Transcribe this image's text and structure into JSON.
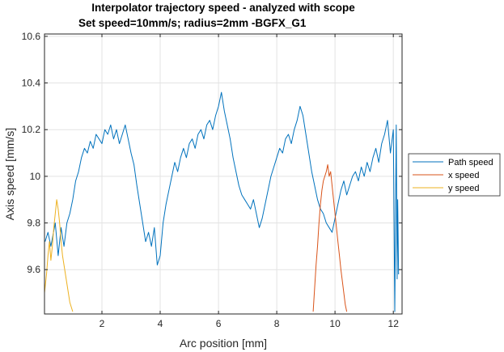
{
  "chart_data": {
    "type": "line",
    "title": [
      "Interpolator trajectory speed - analyzed with scope",
      "Set speed=10mm/s; radius=2mm -BGFX_G1"
    ],
    "xlabel": "Arc position [mm]",
    "ylabel": "Axis speed [mm/s]",
    "xlim": [
      0.03,
      12.3
    ],
    "ylim": [
      9.41,
      10.61
    ],
    "xticks": [
      2,
      4,
      6,
      8,
      10,
      12
    ],
    "yticks": [
      9.6,
      9.8,
      10,
      10.2,
      10.4,
      10.6
    ],
    "xtick_labels": [
      "2",
      "4",
      "6",
      "8",
      "10",
      "12"
    ],
    "ytick_labels": [
      "9.6",
      "9.8",
      "10",
      "10.2",
      "10.4",
      "10.6"
    ],
    "grid": true,
    "legend": {
      "placement": "outside-right",
      "entries": [
        "Path speed",
        "x speed",
        "y speed"
      ]
    },
    "series": [
      {
        "name": "Path speed",
        "color": "#0072bd",
        "x": [
          0.05,
          0.15,
          0.25,
          0.4,
          0.5,
          0.6,
          0.7,
          0.8,
          0.9,
          1.0,
          1.1,
          1.2,
          1.3,
          1.4,
          1.5,
          1.6,
          1.7,
          1.8,
          1.9,
          2.0,
          2.1,
          2.2,
          2.3,
          2.4,
          2.5,
          2.6,
          2.7,
          2.8,
          2.9,
          3.0,
          3.1,
          3.2,
          3.3,
          3.4,
          3.5,
          3.6,
          3.7,
          3.8,
          3.9,
          4.0,
          4.1,
          4.2,
          4.3,
          4.4,
          4.5,
          4.6,
          4.7,
          4.8,
          4.9,
          5.0,
          5.1,
          5.2,
          5.3,
          5.4,
          5.5,
          5.6,
          5.7,
          5.8,
          5.9,
          6.0,
          6.1,
          6.2,
          6.3,
          6.4,
          6.5,
          6.6,
          6.7,
          6.8,
          6.9,
          7.0,
          7.1,
          7.2,
          7.3,
          7.4,
          7.5,
          7.6,
          7.7,
          7.8,
          7.9,
          8.0,
          8.1,
          8.2,
          8.3,
          8.4,
          8.5,
          8.6,
          8.7,
          8.8,
          8.9,
          9.0,
          9.1,
          9.2,
          9.3,
          9.4,
          9.5,
          9.6,
          9.7,
          9.8,
          9.9,
          10.0,
          10.1,
          10.2,
          10.3,
          10.4,
          10.5,
          10.6,
          10.7,
          10.8,
          10.9,
          11.0,
          11.1,
          11.2,
          11.3,
          11.4,
          11.5,
          11.6,
          11.7,
          11.8,
          11.9,
          12.0,
          12.05,
          12.1,
          12.13,
          12.15,
          12.18
        ],
        "values": [
          9.72,
          9.76,
          9.7,
          9.8,
          9.66,
          9.78,
          9.7,
          9.8,
          9.84,
          9.9,
          9.98,
          10.02,
          10.08,
          10.12,
          10.1,
          10.15,
          10.12,
          10.18,
          10.16,
          10.14,
          10.2,
          10.18,
          10.22,
          10.16,
          10.2,
          10.14,
          10.18,
          10.22,
          10.16,
          10.1,
          10.05,
          9.96,
          9.88,
          9.8,
          9.72,
          9.76,
          9.7,
          9.78,
          9.62,
          9.66,
          9.8,
          9.88,
          9.94,
          10.0,
          10.06,
          10.02,
          10.08,
          10.12,
          10.08,
          10.14,
          10.16,
          10.12,
          10.18,
          10.2,
          10.16,
          10.22,
          10.24,
          10.2,
          10.26,
          10.3,
          10.36,
          10.28,
          10.22,
          10.16,
          10.08,
          10.02,
          9.96,
          9.92,
          9.9,
          9.88,
          9.86,
          9.9,
          9.84,
          9.78,
          9.82,
          9.88,
          9.94,
          10.0,
          10.04,
          10.08,
          10.12,
          10.1,
          10.16,
          10.18,
          10.14,
          10.2,
          10.24,
          10.3,
          10.26,
          10.18,
          10.1,
          10.02,
          9.96,
          9.9,
          9.86,
          9.84,
          9.8,
          9.78,
          9.76,
          9.82,
          9.88,
          9.94,
          9.98,
          9.92,
          9.96,
          10.0,
          10.02,
          9.98,
          10.04,
          10.0,
          10.06,
          10.02,
          10.08,
          10.12,
          10.06,
          10.14,
          10.18,
          10.24,
          10.1,
          10.2,
          9.42,
          10.22,
          9.56,
          9.9,
          9.58
        ]
      },
      {
        "name": "x speed",
        "color": "#d95319",
        "x": [
          9.25,
          9.3,
          9.35,
          9.4,
          9.45,
          9.5,
          9.55,
          9.6,
          9.65,
          9.7,
          9.75,
          9.8,
          9.85,
          9.9,
          9.95,
          10.0,
          10.05,
          10.1,
          10.15,
          10.2,
          10.25,
          10.3,
          10.35,
          10.4
        ],
        "values": [
          9.42,
          9.52,
          9.62,
          9.7,
          9.8,
          9.88,
          9.94,
          9.98,
          10.0,
          10.02,
          10.05,
          10.0,
          10.02,
          9.96,
          9.9,
          9.84,
          9.78,
          9.72,
          9.66,
          9.6,
          9.55,
          9.5,
          9.45,
          9.42
        ]
      },
      {
        "name": "y speed",
        "color": "#edb120",
        "x": [
          0.03,
          0.1,
          0.15,
          0.2,
          0.25,
          0.3,
          0.35,
          0.4,
          0.45,
          0.5,
          0.55,
          0.6,
          0.65,
          0.7,
          0.75,
          0.8,
          0.85,
          0.9,
          0.95,
          1.0
        ],
        "values": [
          9.5,
          9.58,
          9.66,
          9.72,
          9.64,
          9.7,
          9.78,
          9.84,
          9.9,
          9.86,
          9.8,
          9.72,
          9.66,
          9.62,
          9.58,
          9.54,
          9.5,
          9.46,
          9.44,
          9.42
        ]
      }
    ]
  }
}
